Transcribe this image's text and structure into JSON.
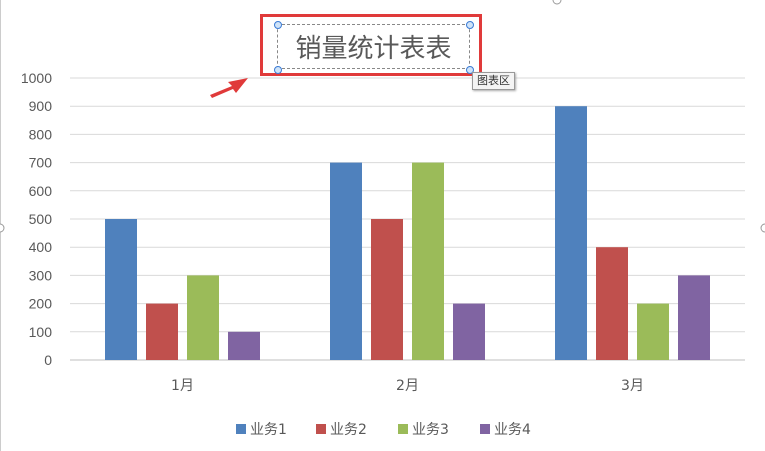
{
  "chart_data": {
    "type": "bar",
    "title": "销量统计表表",
    "categories": [
      "1月",
      "2月",
      "3月"
    ],
    "series": [
      {
        "name": "业务1",
        "values": [
          500,
          700,
          900
        ],
        "color": "#4f81bd"
      },
      {
        "name": "业务2",
        "values": [
          200,
          500,
          400
        ],
        "color": "#c0504d"
      },
      {
        "name": "业务3",
        "values": [
          300,
          700,
          200
        ],
        "color": "#9bbb59"
      },
      {
        "name": "业务4",
        "values": [
          100,
          200,
          300
        ],
        "color": "#8064a2"
      }
    ],
    "ylim": [
      0,
      1000
    ],
    "yticks": [
      0,
      100,
      200,
      300,
      400,
      500,
      600,
      700,
      800,
      900,
      1000
    ],
    "grid": true,
    "legend": "bottom"
  },
  "tooltip": "图表区",
  "annotation_color": "#e03a3a"
}
